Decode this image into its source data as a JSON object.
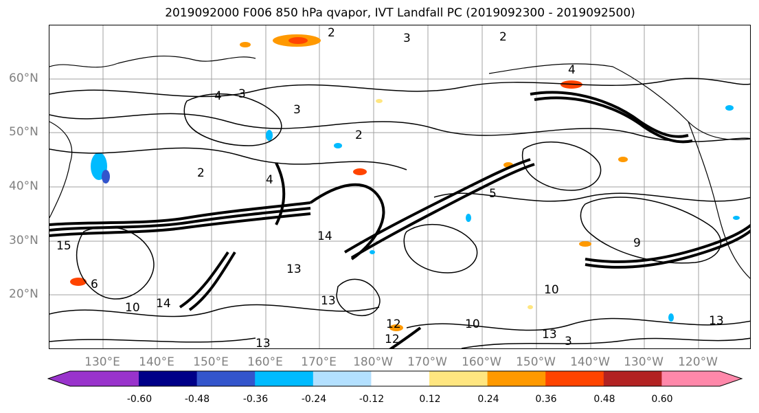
{
  "title": "2019092000 F006 850 hPa qvapor, IVT Landfall PC (2019092300 - 2019092500)",
  "lat_labels": [
    "60°N",
    "50°N",
    "40°N",
    "30°N",
    "20°N"
  ],
  "lon_labels": [
    "130°E",
    "140°E",
    "150°E",
    "160°E",
    "170°E",
    "180°W",
    "170°W",
    "160°W",
    "150°W",
    "140°W",
    "130°W",
    "120°W"
  ],
  "colorbar": {
    "colors": [
      "#9933cc",
      "#000088",
      "#3355cc",
      "#00bbff",
      "#b3e0ff",
      "#ffffff",
      "#ffe680",
      "#ff9900",
      "#ff4400",
      "#b22222",
      "#ff88aa"
    ],
    "tick_labels": [
      "-0.60",
      "-0.48",
      "-0.36",
      "-0.24",
      "-0.12",
      "0.12",
      "0.24",
      "0.36",
      "0.48",
      "0.60"
    ]
  },
  "contour_labels": [
    "2",
    "3",
    "2",
    "4",
    "3",
    "4",
    "3",
    "2",
    "4",
    "2",
    "5",
    "15",
    "6",
    "10",
    "14",
    "13",
    "12",
    "13",
    "10",
    "13",
    "9",
    "13",
    "10",
    "3",
    "14",
    "13",
    "12"
  ]
}
